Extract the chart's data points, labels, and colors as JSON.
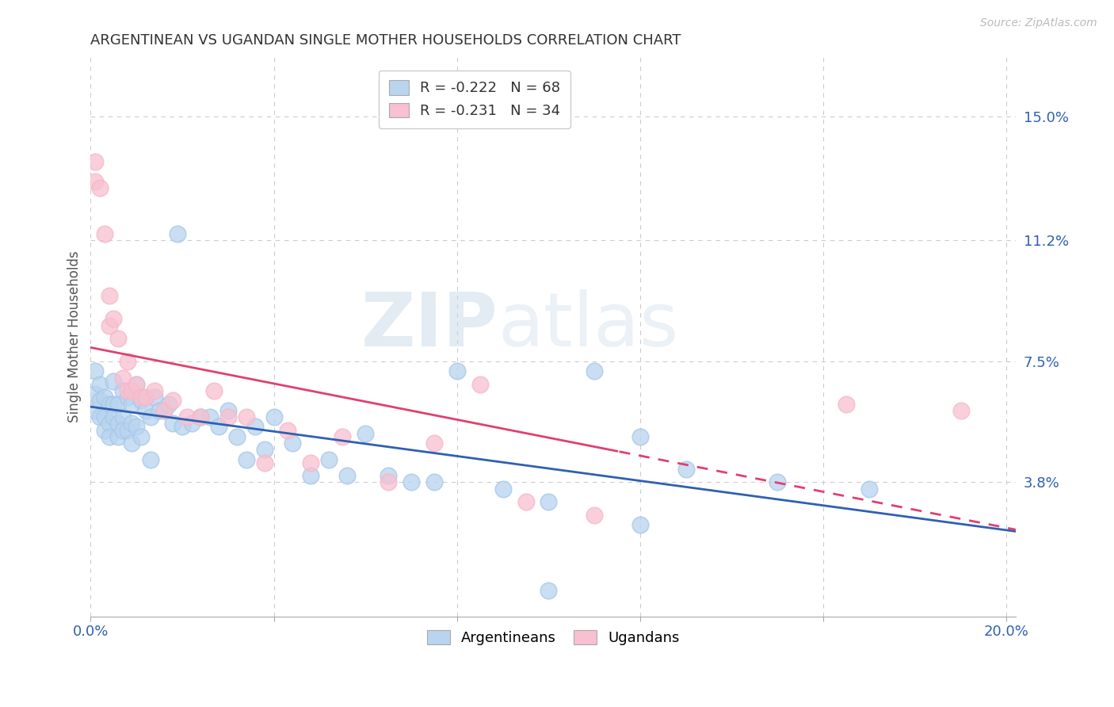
{
  "title": "ARGENTINEAN VS UGANDAN SINGLE MOTHER HOUSEHOLDS CORRELATION CHART",
  "source": "Source: ZipAtlas.com",
  "ylabel": "Single Mother Households",
  "xlim": [
    0.0,
    0.202
  ],
  "ylim": [
    -0.003,
    0.168
  ],
  "yticks_right": [
    0.038,
    0.075,
    0.112,
    0.15
  ],
  "yticklabels_right": [
    "3.8%",
    "7.5%",
    "11.2%",
    "15.0%"
  ],
  "xtick_positions": [
    0.0,
    0.04,
    0.08,
    0.12,
    0.16,
    0.2
  ],
  "xticklabels": [
    "0.0%",
    "",
    "",
    "",
    "",
    "20.0%"
  ],
  "blue_color": "#a8c8e8",
  "pink_color": "#f5b8c8",
  "blue_fill": "#b8d4ee",
  "pink_fill": "#f8c0d0",
  "blue_line_color": "#3060b0",
  "pink_line_color": "#e04070",
  "legend_blue_label": "R = -0.222   N = 68",
  "legend_pink_label": "R = -0.231   N = 34",
  "background_color": "#ffffff",
  "grid_color": "#cccccc",
  "watermark_zip": "ZIP",
  "watermark_atlas": "atlas",
  "arg_x": [
    0.001,
    0.001,
    0.001,
    0.002,
    0.002,
    0.002,
    0.003,
    0.003,
    0.003,
    0.004,
    0.004,
    0.004,
    0.005,
    0.005,
    0.005,
    0.006,
    0.006,
    0.006,
    0.007,
    0.007,
    0.007,
    0.008,
    0.008,
    0.009,
    0.009,
    0.009,
    0.01,
    0.01,
    0.011,
    0.011,
    0.012,
    0.013,
    0.013,
    0.014,
    0.015,
    0.016,
    0.017,
    0.018,
    0.019,
    0.02,
    0.022,
    0.024,
    0.026,
    0.028,
    0.03,
    0.032,
    0.034,
    0.036,
    0.038,
    0.04,
    0.044,
    0.048,
    0.052,
    0.056,
    0.06,
    0.065,
    0.07,
    0.075,
    0.08,
    0.09,
    0.1,
    0.11,
    0.12,
    0.13,
    0.15,
    0.17,
    0.1,
    0.12
  ],
  "arg_y": [
    0.072,
    0.065,
    0.06,
    0.068,
    0.063,
    0.058,
    0.064,
    0.058,
    0.054,
    0.062,
    0.056,
    0.052,
    0.069,
    0.062,
    0.058,
    0.062,
    0.056,
    0.052,
    0.066,
    0.058,
    0.054,
    0.064,
    0.054,
    0.062,
    0.056,
    0.05,
    0.068,
    0.055,
    0.063,
    0.052,
    0.06,
    0.058,
    0.045,
    0.064,
    0.06,
    0.06,
    0.062,
    0.056,
    0.114,
    0.055,
    0.056,
    0.058,
    0.058,
    0.055,
    0.06,
    0.052,
    0.045,
    0.055,
    0.048,
    0.058,
    0.05,
    0.04,
    0.045,
    0.04,
    0.053,
    0.04,
    0.038,
    0.038,
    0.072,
    0.036,
    0.032,
    0.072,
    0.052,
    0.042,
    0.038,
    0.036,
    0.005,
    0.025
  ],
  "uga_x": [
    0.001,
    0.001,
    0.002,
    0.003,
    0.004,
    0.004,
    0.005,
    0.006,
    0.007,
    0.008,
    0.008,
    0.009,
    0.01,
    0.011,
    0.012,
    0.014,
    0.016,
    0.018,
    0.021,
    0.024,
    0.027,
    0.03,
    0.034,
    0.038,
    0.043,
    0.048,
    0.055,
    0.065,
    0.075,
    0.085,
    0.095,
    0.11,
    0.165,
    0.19
  ],
  "uga_y": [
    0.136,
    0.13,
    0.128,
    0.114,
    0.095,
    0.086,
    0.088,
    0.082,
    0.07,
    0.075,
    0.066,
    0.066,
    0.068,
    0.064,
    0.064,
    0.066,
    0.06,
    0.063,
    0.058,
    0.058,
    0.066,
    0.058,
    0.058,
    0.044,
    0.054,
    0.044,
    0.052,
    0.038,
    0.05,
    0.068,
    0.032,
    0.028,
    0.062,
    0.06
  ]
}
